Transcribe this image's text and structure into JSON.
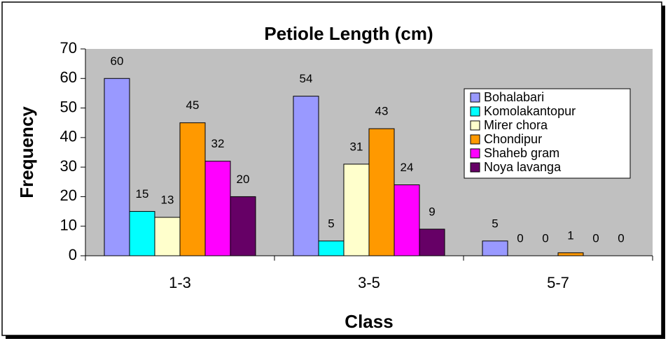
{
  "chart_data": {
    "type": "bar",
    "title": "Petiole Length (cm)",
    "x_label": "Class",
    "y_label": "Frequency",
    "categories": [
      "1-3",
      "3-5",
      "5-7"
    ],
    "series": [
      {
        "name": "Bohalabari",
        "color": "#9999ff",
        "values": [
          60,
          54,
          5
        ]
      },
      {
        "name": "Komolakantopur",
        "color": "#00ffff",
        "values": [
          15,
          5,
          0
        ]
      },
      {
        "name": "Mirer chora",
        "color": "#ffffcc",
        "values": [
          13,
          31,
          0
        ]
      },
      {
        "name": "Chondipur",
        "color": "#ff9900",
        "values": [
          45,
          43,
          1
        ]
      },
      {
        "name": "Shaheb gram",
        "color": "#ff00ff",
        "values": [
          32,
          24,
          0
        ]
      },
      {
        "name": "Noya lavanga",
        "color": "#660066",
        "values": [
          20,
          9,
          0
        ]
      }
    ],
    "ylim": [
      0,
      70
    ],
    "yticks": [
      0,
      10,
      20,
      30,
      40,
      50,
      60,
      70
    ],
    "legend": "upper right",
    "plot_background": "#c0c0c0"
  }
}
